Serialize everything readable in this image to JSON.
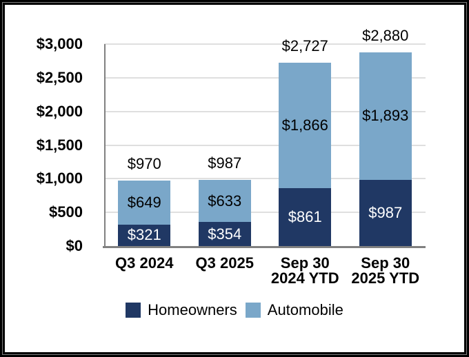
{
  "chart_data": {
    "type": "bar",
    "stacked": true,
    "title": "",
    "xlabel": "",
    "ylabel": "",
    "categories": [
      "Q3 2024",
      "Q3 2025",
      "Sep 30\n2024 YTD",
      "Sep 30\n2025 YTD"
    ],
    "series": [
      {
        "name": "Homeowners",
        "color": "#203864",
        "label_color": "#FFFFFF",
        "values": [
          321,
          354,
          861,
          987
        ],
        "labels": [
          "$321",
          "$354",
          "$861",
          "$987"
        ]
      },
      {
        "name": "Automobile",
        "color": "#7AA7C9",
        "label_color": "#000000",
        "values": [
          649,
          633,
          1866,
          1893
        ],
        "labels": [
          "$649",
          "$633",
          "$1,866",
          "$1,893"
        ]
      }
    ],
    "totals": [
      970,
      987,
      2727,
      2880
    ],
    "total_labels": [
      "$970",
      "$987",
      "$2,727",
      "$2,880"
    ],
    "ylim": [
      0,
      3000
    ],
    "ytick_step": 500,
    "ytick_labels": [
      "$0",
      "$500",
      "$1,000",
      "$1,500",
      "$2,000",
      "$2,500",
      "$3,000"
    ],
    "grid": true,
    "legend_position": "bottom",
    "colors": {
      "frame": "#000000",
      "axis": "#808080",
      "grid": "#DFDFDF",
      "tick_label": "#000000",
      "data_label": "#000000"
    }
  }
}
